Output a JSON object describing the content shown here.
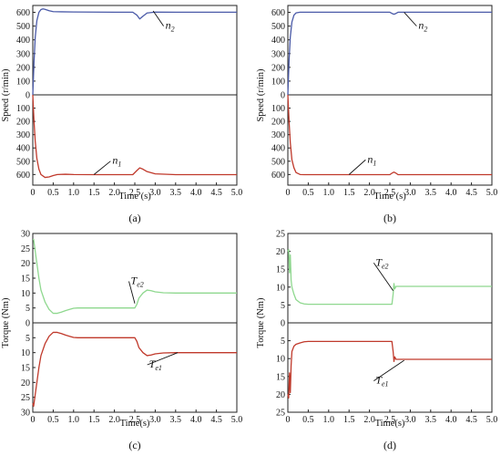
{
  "chart_data": [
    {
      "type": "line",
      "panel_label": "(a)",
      "ylabel": "Speed (r/min)",
      "xlabel": "Time (s)",
      "xlim": [
        0,
        5
      ],
      "x_ticks": [
        "0",
        "0.5",
        "1.0",
        "1.5",
        "2.0",
        "2.5",
        "3.0",
        "3.5",
        "4.0",
        "4.5",
        "5.0"
      ],
      "upper": {
        "ylim": [
          0,
          650
        ],
        "ticks": [
          "0",
          "100",
          "200",
          "300",
          "400",
          "500",
          "600"
        ]
      },
      "lower": {
        "ylim": [
          0,
          680
        ],
        "inverted": true,
        "ticks": [
          "100",
          "200",
          "300",
          "400",
          "500",
          "600"
        ]
      },
      "series": [
        {
          "name": "n2",
          "main": "n",
          "sub": "2",
          "half": "upper",
          "color": "#4a5aa8",
          "x": [
            0,
            0.03,
            0.06,
            0.1,
            0.15,
            0.2,
            0.25,
            0.3,
            0.4,
            0.5,
            0.7,
            1.0,
            1.5,
            2.0,
            2.45,
            2.55,
            2.62,
            2.7,
            2.8,
            3.0,
            3.5,
            4.0,
            5.0
          ],
          "y": [
            0,
            240,
            420,
            540,
            600,
            620,
            625,
            622,
            612,
            605,
            604,
            603,
            602,
            601,
            601,
            580,
            552,
            572,
            595,
            602,
            601,
            601,
            601
          ]
        },
        {
          "name": "n1",
          "main": "n",
          "sub": "1",
          "half": "lower",
          "color": "#c0392b",
          "x": [
            0,
            0.03,
            0.06,
            0.1,
            0.15,
            0.2,
            0.3,
            0.4,
            0.5,
            0.6,
            0.8,
            1.0,
            1.5,
            2.0,
            2.45,
            2.55,
            2.62,
            2.7,
            2.8,
            3.0,
            3.5,
            4.0,
            5.0
          ],
          "y": [
            0,
            200,
            350,
            480,
            560,
            600,
            622,
            618,
            608,
            600,
            598,
            600,
            601,
            601,
            601,
            570,
            550,
            560,
            578,
            595,
            601,
            601,
            601
          ]
        }
      ],
      "annotations": [
        {
          "series": "n2",
          "at": [
            2.95,
            610
          ],
          "label_at": [
            3.25,
            480
          ]
        },
        {
          "series": "n1",
          "at": [
            1.5,
            600
          ],
          "label_at": [
            1.95,
            520
          ]
        }
      ]
    },
    {
      "type": "line",
      "panel_label": "(b)",
      "ylabel": "Speed (r/min)",
      "xlabel": "Time (s)",
      "xlim": [
        0,
        5
      ],
      "x_ticks": [
        "0",
        "0.5",
        "1.0",
        "1.5",
        "2.0",
        "2.5",
        "3.0",
        "3.5",
        "4.0",
        "4.5",
        "5.0"
      ],
      "upper": {
        "ylim": [
          0,
          650
        ],
        "ticks": [
          "0",
          "100",
          "200",
          "300",
          "400",
          "500",
          "600"
        ]
      },
      "lower": {
        "ylim": [
          0,
          680
        ],
        "inverted": true,
        "ticks": [
          "100",
          "200",
          "300",
          "400",
          "500",
          "600"
        ]
      },
      "series": [
        {
          "name": "n2",
          "main": "n",
          "sub": "2",
          "half": "upper",
          "color": "#4a5aa8",
          "x": [
            0,
            0.03,
            0.06,
            0.1,
            0.15,
            0.2,
            0.3,
            0.4,
            0.5,
            1.0,
            2.0,
            2.5,
            2.55,
            2.6,
            2.65,
            2.7,
            3.0,
            4.0,
            5.0
          ],
          "y": [
            0,
            250,
            420,
            530,
            580,
            596,
            601,
            601,
            601,
            601,
            601,
            601,
            592,
            586,
            592,
            601,
            601,
            601,
            601
          ]
        },
        {
          "name": "n1",
          "main": "n",
          "sub": "1",
          "half": "lower",
          "color": "#c0392b",
          "x": [
            0,
            0.03,
            0.06,
            0.1,
            0.15,
            0.2,
            0.3,
            0.4,
            0.5,
            1.0,
            2.0,
            2.5,
            2.55,
            2.6,
            2.65,
            2.7,
            3.0,
            4.0,
            5.0
          ],
          "y": [
            0,
            200,
            360,
            490,
            550,
            585,
            600,
            601,
            601,
            601,
            601,
            601,
            590,
            582,
            590,
            601,
            601,
            601,
            601
          ]
        }
      ],
      "annotations": [
        {
          "series": "n2",
          "at": [
            2.85,
            600
          ],
          "label_at": [
            3.2,
            480
          ]
        },
        {
          "series": "n1",
          "at": [
            1.5,
            600
          ],
          "label_at": [
            1.95,
            510
          ]
        }
      ]
    },
    {
      "type": "line",
      "panel_label": "(c)",
      "ylabel": "Torque (Nm)",
      "xlabel": "Time(s)",
      "xlim": [
        0,
        5
      ],
      "x_ticks": [
        "0",
        "0.5",
        "1.0",
        "1.5",
        "2.0",
        "2.5",
        "3.0",
        "3.5",
        "4.0",
        "4.5",
        "5.0"
      ],
      "upper": {
        "ylim": [
          0,
          30
        ],
        "ticks": [
          "0",
          "5",
          "10",
          "15",
          "20",
          "25",
          "30"
        ]
      },
      "lower": {
        "ylim": [
          0,
          30
        ],
        "inverted": true,
        "ticks": [
          "5",
          "10",
          "15",
          "20",
          "25",
          "30"
        ]
      },
      "series": [
        {
          "name": "Te2",
          "main": "T",
          "sub": "e2",
          "half": "upper",
          "color": "#8fd88f",
          "x": [
            0,
            0.02,
            0.05,
            0.1,
            0.15,
            0.2,
            0.3,
            0.4,
            0.5,
            0.6,
            0.7,
            0.8,
            0.9,
            1.0,
            1.1,
            1.2,
            1.5,
            2.0,
            2.5,
            2.55,
            2.6,
            2.7,
            2.8,
            2.9,
            3.0,
            3.2,
            3.5,
            4.0,
            5.0
          ],
          "y": [
            28,
            28,
            25,
            20,
            15,
            11,
            7,
            4.5,
            3.2,
            3.2,
            3.6,
            4.1,
            4.5,
            4.9,
            5,
            5,
            5,
            5,
            5,
            6.2,
            8.3,
            10,
            11,
            10.8,
            10.4,
            10.1,
            10,
            10,
            10
          ]
        },
        {
          "name": "Te1",
          "main": "T",
          "sub": "e1",
          "half": "lower",
          "color": "#c0392b",
          "x": [
            0,
            0.02,
            0.05,
            0.1,
            0.15,
            0.2,
            0.3,
            0.4,
            0.5,
            0.6,
            0.7,
            0.8,
            0.9,
            1.0,
            1.1,
            1.2,
            1.5,
            2.0,
            2.5,
            2.55,
            2.6,
            2.7,
            2.8,
            2.9,
            3.0,
            3.2,
            3.5,
            4.0,
            5.0
          ],
          "y": [
            27,
            28,
            25,
            20,
            15,
            11,
            7,
            4.5,
            3.2,
            3.2,
            3.6,
            4.1,
            4.5,
            4.9,
            5,
            5,
            5,
            5,
            5,
            6.2,
            8.3,
            10,
            11,
            10.8,
            10.4,
            10.1,
            10,
            10,
            10
          ]
        }
      ],
      "annotations": [
        {
          "series": "Te2",
          "at": [
            2.5,
            6.5
          ],
          "label_at": [
            2.4,
            13
          ]
        },
        {
          "series": "Te1",
          "at": [
            3.55,
            10
          ],
          "label_at": [
            2.85,
            15
          ]
        }
      ]
    },
    {
      "type": "line",
      "panel_label": "(d)",
      "ylabel": "Torque (Nm)",
      "xlabel": "Time(s)",
      "xlim": [
        0,
        5
      ],
      "x_ticks": [
        "0",
        "0.5",
        "1.0",
        "1.5",
        "2.0",
        "2.5",
        "3.0",
        "3.5",
        "4.0",
        "4.5",
        "5.0"
      ],
      "upper": {
        "ylim": [
          0,
          25
        ],
        "ticks": [
          "0",
          "5",
          "10",
          "15",
          "20",
          "25"
        ]
      },
      "lower": {
        "ylim": [
          0,
          25
        ],
        "inverted": true,
        "ticks": [
          "5",
          "10",
          "15",
          "20",
          "25"
        ]
      },
      "series": [
        {
          "name": "Te2",
          "main": "T",
          "sub": "e2",
          "half": "upper",
          "color": "#8fd88f",
          "x": [
            0,
            0.02,
            0.04,
            0.06,
            0.08,
            0.1,
            0.15,
            0.2,
            0.3,
            0.4,
            0.5,
            1.0,
            2.0,
            2.55,
            2.58,
            2.6,
            2.62,
            2.65,
            2.7,
            3.0,
            4.0,
            5.0
          ],
          "y": [
            20,
            20.5,
            14,
            19,
            12,
            10,
            8,
            6.5,
            5.6,
            5.3,
            5.2,
            5.2,
            5.2,
            5.2,
            8,
            11,
            9.5,
            10.2,
            10.2,
            10.2,
            10.2,
            10.2
          ]
        },
        {
          "name": "Te1",
          "main": "T",
          "sub": "e1",
          "half": "lower",
          "color": "#c0392b",
          "x": [
            0,
            0.02,
            0.04,
            0.06,
            0.08,
            0.1,
            0.15,
            0.2,
            0.3,
            0.4,
            0.5,
            1.0,
            2.0,
            2.55,
            2.58,
            2.6,
            2.62,
            2.65,
            2.7,
            3.0,
            4.0,
            5.0
          ],
          "y": [
            20,
            21,
            14,
            19.5,
            12,
            8,
            6.5,
            6,
            5.6,
            5.3,
            5.2,
            5.2,
            5.2,
            5.2,
            8,
            10.8,
            9.5,
            10.2,
            10.2,
            10.2,
            10.2,
            10.2
          ]
        }
      ],
      "annotations": [
        {
          "series": "Te2",
          "at": [
            2.58,
            9
          ],
          "label_at": [
            2.15,
            16
          ]
        },
        {
          "series": "Te1",
          "at": [
            2.85,
            10.5
          ],
          "label_at": [
            2.15,
            17
          ]
        }
      ]
    }
  ]
}
